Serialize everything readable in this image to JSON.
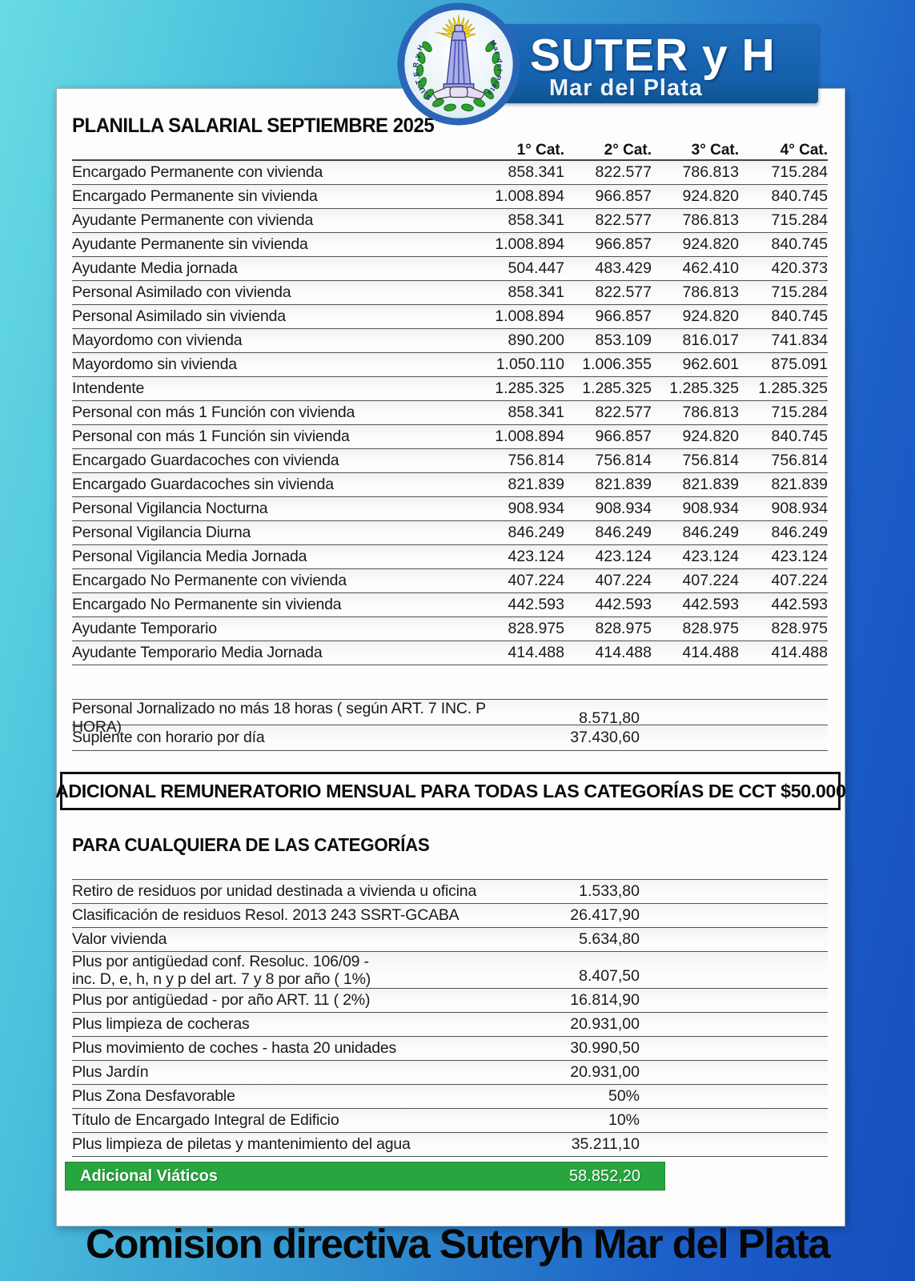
{
  "header": {
    "org_name": "SUTER y H",
    "org_place": "Mar del Plata",
    "logo_text_left": "S.U.T.E.R.y H.",
    "logo_text_right": "Mar del Plata"
  },
  "main_table": {
    "title": "PLANILLA SALARIAL SEPTIEMBRE 2025",
    "columns": [
      "1° Cat.",
      "2° Cat.",
      "3° Cat.",
      "4° Cat."
    ],
    "rows": [
      {
        "label": "Encargado Permanente con vivienda",
        "values": [
          "858.341",
          "822.577",
          "786.813",
          "715.284"
        ]
      },
      {
        "label": "Encargado Permanente sin vivienda",
        "values": [
          "1.008.894",
          "966.857",
          "924.820",
          "840.745"
        ]
      },
      {
        "label": "Ayudante Permanente con vivienda",
        "values": [
          "858.341",
          "822.577",
          "786.813",
          "715.284"
        ]
      },
      {
        "label": "Ayudante Permanente sin vivienda",
        "values": [
          "1.008.894",
          "966.857",
          "924.820",
          "840.745"
        ]
      },
      {
        "label": "Ayudante Media jornada",
        "values": [
          "504.447",
          "483.429",
          "462.410",
          "420.373"
        ]
      },
      {
        "label": "Personal Asimilado con vivienda",
        "values": [
          "858.341",
          "822.577",
          "786.813",
          "715.284"
        ]
      },
      {
        "label": "Personal Asimilado sin vivienda",
        "values": [
          "1.008.894",
          "966.857",
          "924.820",
          "840.745"
        ]
      },
      {
        "label": "Mayordomo con vivienda",
        "values": [
          "890.200",
          "853.109",
          "816.017",
          "741.834"
        ]
      },
      {
        "label": "Mayordomo sin vivienda",
        "values": [
          "1.050.110",
          "1.006.355",
          "962.601",
          "875.091"
        ]
      },
      {
        "label": "Intendente",
        "values": [
          "1.285.325",
          "1.285.325",
          "1.285.325",
          "1.285.325"
        ]
      },
      {
        "label": "Personal con más 1 Función con vivienda",
        "values": [
          "858.341",
          "822.577",
          "786.813",
          "715.284"
        ]
      },
      {
        "label": "Personal con más 1 Función sin vivienda",
        "values": [
          "1.008.894",
          "966.857",
          "924.820",
          "840.745"
        ]
      },
      {
        "label": "Encargado Guardacoches con vivienda",
        "values": [
          "756.814",
          "756.814",
          "756.814",
          "756.814"
        ]
      },
      {
        "label": "Encargado Guardacoches sin vivienda",
        "values": [
          "821.839",
          "821.839",
          "821.839",
          "821.839"
        ]
      },
      {
        "label": "Personal Vigilancia Nocturna",
        "values": [
          "908.934",
          "908.934",
          "908.934",
          "908.934"
        ]
      },
      {
        "label": "Personal Vigilancia Diurna",
        "values": [
          "846.249",
          "846.249",
          "846.249",
          "846.249"
        ]
      },
      {
        "label": "Personal Vigilancia Media Jornada",
        "values": [
          "423.124",
          "423.124",
          "423.124",
          "423.124"
        ]
      },
      {
        "label": "Encargado No Permanente con vivienda",
        "values": [
          "407.224",
          "407.224",
          "407.224",
          "407.224"
        ]
      },
      {
        "label": "Encargado No Permanente sin vivienda",
        "values": [
          "442.593",
          "442.593",
          "442.593",
          "442.593"
        ]
      },
      {
        "label": "Ayudante Temporario",
        "values": [
          "828.975",
          "828.975",
          "828.975",
          "828.975"
        ]
      },
      {
        "label": "Ayudante Temporario Media Jornada",
        "values": [
          "414.488",
          "414.488",
          "414.488",
          "414.488"
        ]
      }
    ]
  },
  "hourly_table": {
    "rows": [
      {
        "label": "Personal Jornalizado no más 18 horas ( según ART. 7 INC. P HORA)",
        "value": "8.571,80"
      },
      {
        "label": "Suplente con horario por día",
        "value": "37.430,60"
      }
    ]
  },
  "adicional_banner": "ADICIONAL REMUNERATORIO MENSUAL PARA TODAS LAS CATEGORÍAS DE CCT $50.000",
  "categories_section": {
    "title": "PARA CUALQUIERA DE LAS CATEGORÍAS",
    "rows": [
      {
        "label": "Retiro de residuos por unidad destinada a vivienda u oficina",
        "value": "1.533,80"
      },
      {
        "label": "Clasificación de residuos Resol. 2013 243 SSRT-GCABA",
        "value": "26.417,90"
      },
      {
        "label": "Valor vivienda",
        "value": "5.634,80"
      },
      {
        "label": "Plus por antigüedad conf. Resoluc. 106/09 -",
        "label2": "inc. D, e, h, n y p del art. 7 y 8 por año ( 1%)",
        "value": "8.407,50"
      },
      {
        "label": "Plus por antigüedad - por año ART. 11 ( 2%)",
        "value": "16.814,90"
      },
      {
        "label": "Plus limpieza de cocheras",
        "value": "20.931,00"
      },
      {
        "label": "Plus movimiento de coches - hasta 20 unidades",
        "value": "30.990,50"
      },
      {
        "label": "Plus Jardín",
        "value": "20.931,00"
      },
      {
        "label": "Plus Zona Desfavorable",
        "value": "50%"
      },
      {
        "label": "Título de Encargado Integral de Edificio",
        "value": "10%"
      },
      {
        "label": "Plus limpieza de piletas y mantenimiento del agua",
        "value": "35.211,10"
      }
    ],
    "highlight_row": {
      "label": "Adicional Viáticos",
      "value": "58.852,20"
    }
  },
  "footer": {
    "text": "Comision directiva Suteryh Mar del Plata"
  },
  "colors": {
    "background_gradient_start": "#67dce4",
    "background_gradient_end": "#164fbe",
    "banner_blue": "#1460ab",
    "highlight_green": "#27a53e",
    "rule_line": "#4a525a"
  }
}
